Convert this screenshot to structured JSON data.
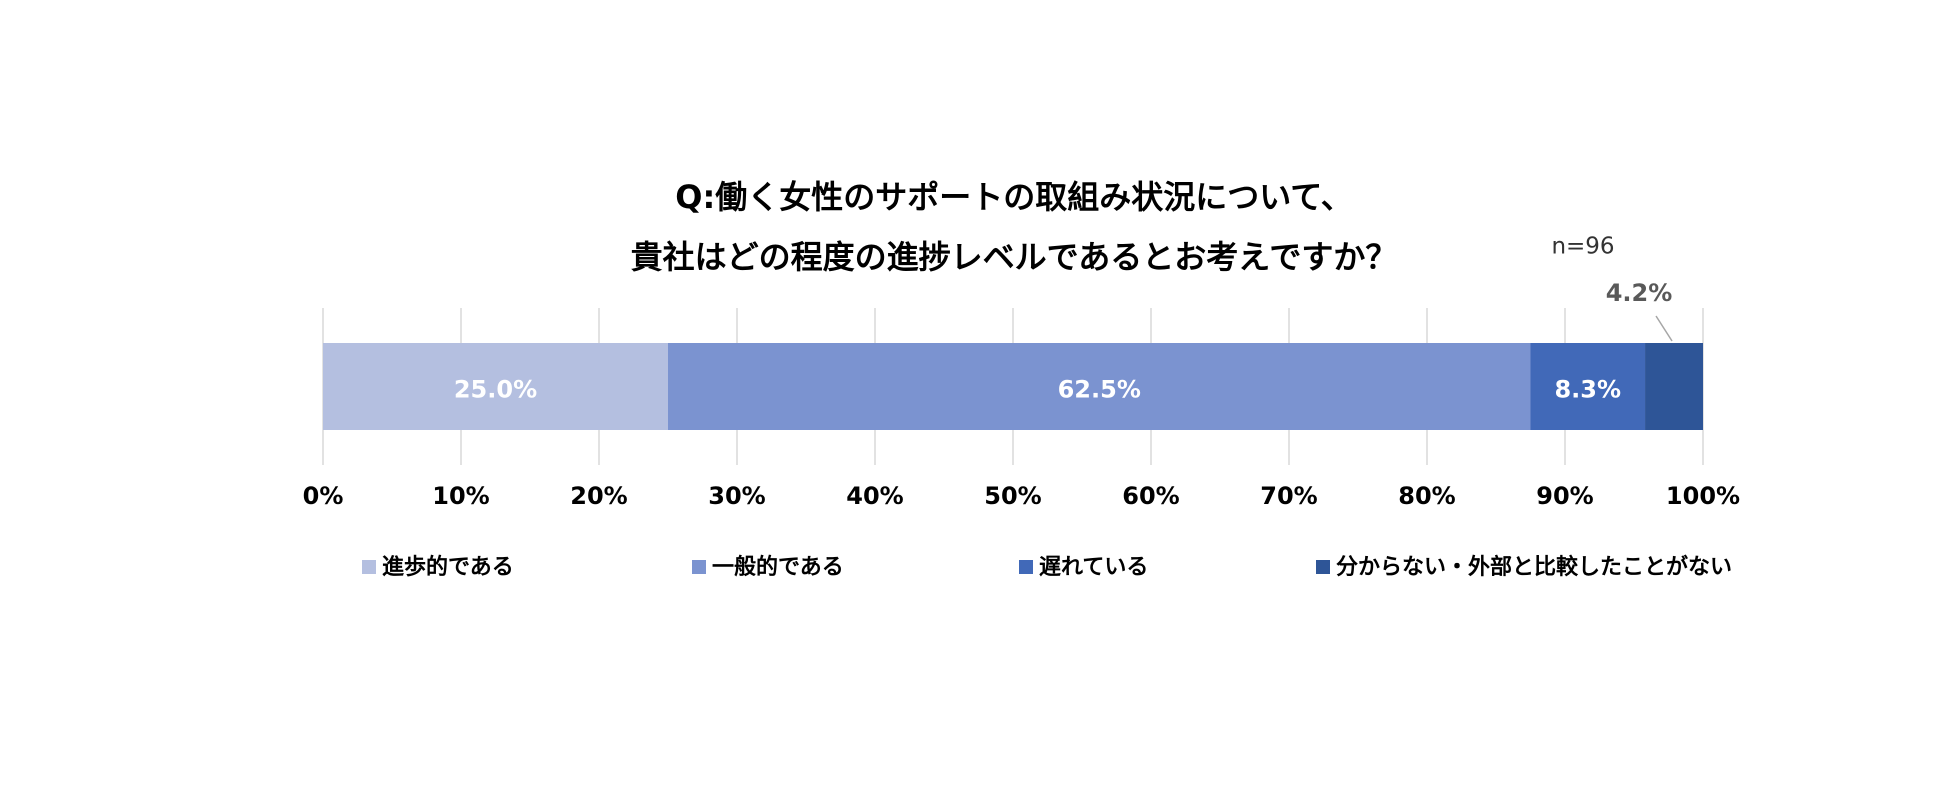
{
  "chart_data": {
    "type": "stacked-bar-horizontal",
    "title": [
      "Q:働く女性のサポートの取組み状況について、",
      "貴社はどの程度の進捗レベルであるとお考えですか？"
    ],
    "note": "n=96",
    "series": [
      {
        "name": "進歩的である",
        "color": "#b4bfe0",
        "values": [
          25.0
        ],
        "value_labels": [
          "25.0%"
        ]
      },
      {
        "name": "一般的である",
        "color": "#7b93d0",
        "values": [
          62.5
        ],
        "value_labels": [
          "62.5%"
        ]
      },
      {
        "name": "遅れている",
        "color": "#4169b8",
        "values": [
          8.3
        ],
        "value_labels": [
          "8.3%"
        ]
      },
      {
        "name": "分からない・外部と比較したことがない",
        "color": "#2e5597",
        "values": [
          4.2
        ],
        "value_labels": [
          "4.2%"
        ]
      }
    ],
    "xlim": [
      0,
      100
    ],
    "xticks": [
      {
        "value": 0,
        "label": "0%"
      },
      {
        "value": 10,
        "label": "10%"
      },
      {
        "value": 20,
        "label": "20%"
      },
      {
        "value": 30,
        "label": "30%"
      },
      {
        "value": 40,
        "label": "40%"
      },
      {
        "value": 50,
        "label": "50%"
      },
      {
        "value": 60,
        "label": "60%"
      },
      {
        "value": 70,
        "label": "70%"
      },
      {
        "value": 80,
        "label": "80%"
      },
      {
        "value": 90,
        "label": "90%"
      },
      {
        "value": 100,
        "label": "100%"
      }
    ],
    "grid": true,
    "legend": "bottom"
  }
}
